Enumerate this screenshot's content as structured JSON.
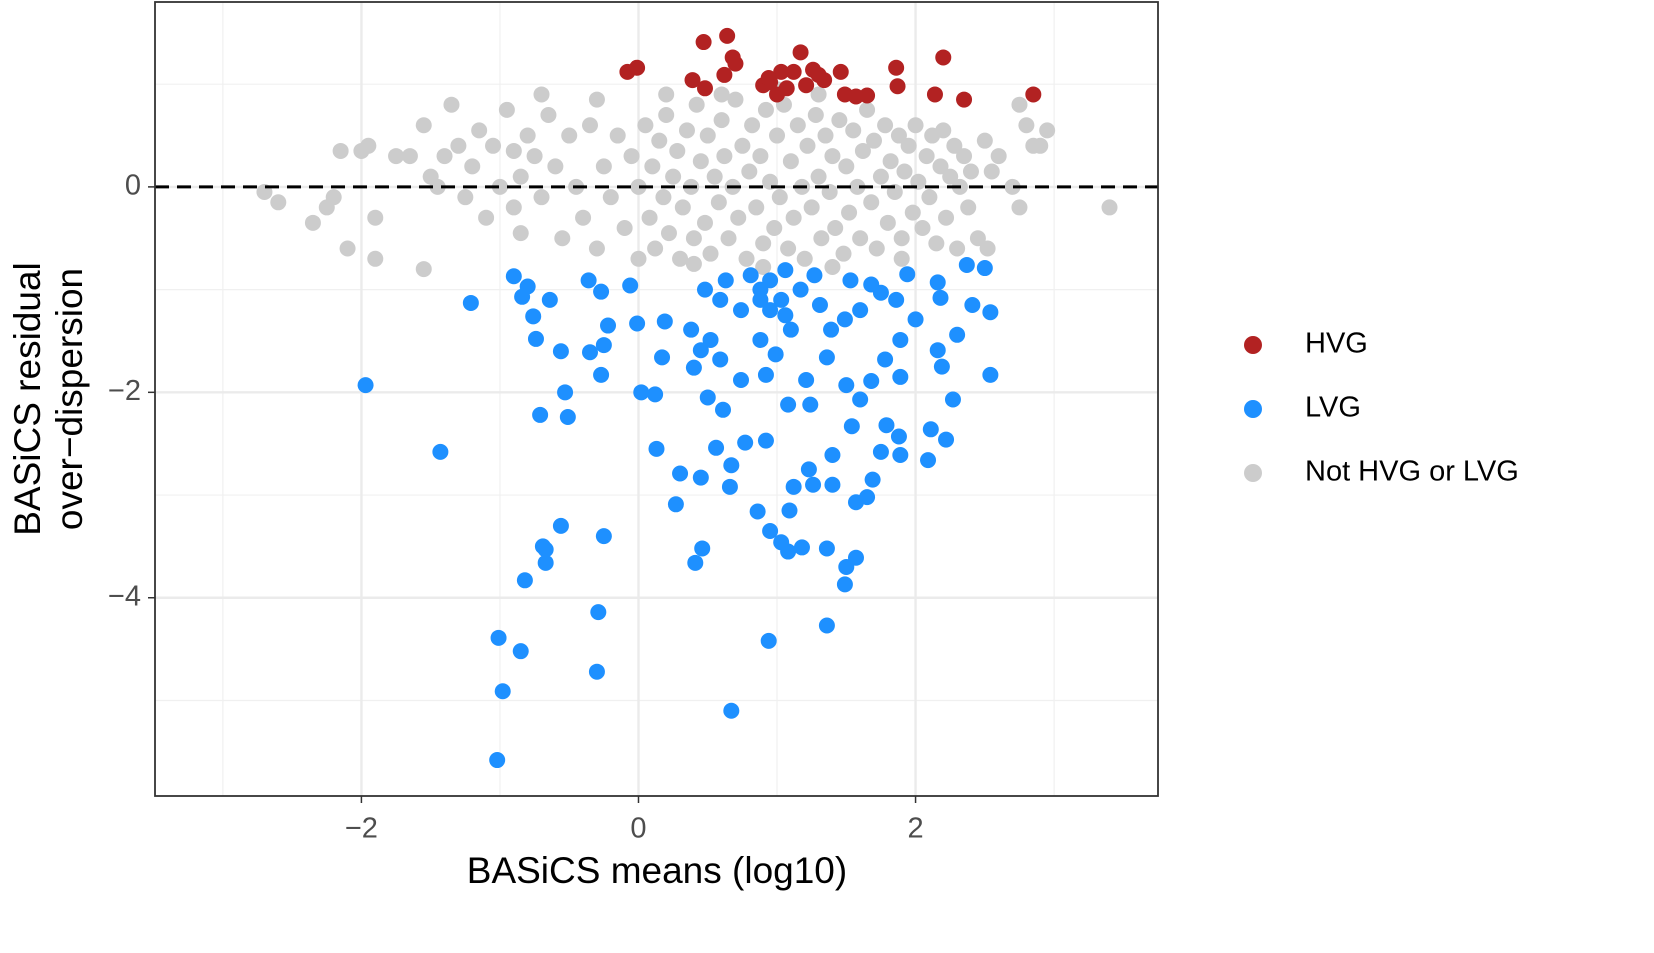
{
  "chart_data": {
    "type": "scatter",
    "xlabel": "BASiCS means (log10)",
    "ylabel": [
      "BASiCS residual",
      "over−dispersion"
    ],
    "xlim": [
      -3.49,
      3.75
    ],
    "ylim": [
      -5.93,
      1.8
    ],
    "xticks": [
      {
        "value": -2,
        "label": "−2"
      },
      0,
      2
    ],
    "yticks": [
      {
        "value": -4,
        "label": "−4"
      },
      {
        "value": -2,
        "label": "−2"
      },
      0
    ],
    "x_minor_grid": [
      -3,
      -1,
      1,
      3
    ],
    "y_minor_grid": [
      -5,
      -3,
      -1,
      1
    ],
    "grid": true,
    "hline": 0,
    "legend": "right",
    "series": [
      {
        "name": "HVG",
        "color": "#b22222",
        "x": [
          -0.08,
          -0.01,
          0.39,
          0.47,
          0.64,
          0.48,
          0.62,
          0.68,
          0.7,
          0.9,
          0.95,
          1.03,
          1.07,
          1.12,
          1.17,
          1.21,
          1.26,
          1.3,
          1.34,
          1.46,
          1.49,
          1.57,
          1.65,
          1.86,
          1.87,
          2.14,
          2.2,
          2.35,
          2.85,
          1.0,
          0.94
        ],
        "y": [
          1.12,
          1.16,
          1.04,
          1.41,
          1.47,
          0.96,
          1.09,
          1.26,
          1.2,
          0.99,
          1.02,
          1.12,
          0.96,
          1.12,
          1.31,
          0.99,
          1.14,
          1.09,
          1.04,
          1.12,
          0.9,
          0.88,
          0.89,
          1.16,
          0.98,
          0.9,
          1.26,
          0.85,
          0.9,
          0.9,
          1.06
        ]
      },
      {
        "name": "LVG",
        "color": "#1e90ff",
        "x": [
          -1.97,
          -1.43,
          -1.21,
          -1.01,
          -0.98,
          -1.02,
          -0.85,
          -0.82,
          -0.69,
          -0.67,
          -0.67,
          -0.56,
          -0.71,
          -0.51,
          -0.53,
          -0.56,
          -0.74,
          -0.76,
          -0.84,
          -0.9,
          -0.8,
          -0.64,
          -0.35,
          -0.27,
          -0.25,
          -0.22,
          -0.36,
          -0.27,
          -0.29,
          -0.3,
          -0.25,
          -0.06,
          -0.01,
          0.02,
          0.12,
          0.13,
          0.19,
          0.17,
          0.3,
          0.27,
          0.41,
          0.46,
          0.45,
          0.4,
          0.5,
          0.56,
          0.61,
          0.67,
          0.66,
          0.67,
          0.77,
          0.86,
          0.92,
          0.94,
          0.95,
          1.03,
          1.08,
          1.09,
          1.12,
          1.08,
          1.18,
          1.26,
          1.23,
          1.36,
          1.36,
          1.4,
          1.4,
          1.36,
          1.5,
          1.49,
          1.57,
          1.54,
          1.57,
          1.65,
          1.68,
          1.69,
          1.75,
          1.79,
          1.88,
          1.89,
          1.89,
          2.09,
          2.11,
          2.22,
          2.27,
          2.16,
          2.19,
          2.54,
          2.54,
          2.5,
          2.37,
          2.41,
          2.3,
          2.16,
          2.18,
          1.94,
          1.75,
          1.68,
          1.6,
          1.49,
          1.31,
          1.17,
          1.03,
          0.88,
          0.74,
          0.59,
          0.48,
          0.38,
          0.52,
          0.88,
          1.1,
          1.39,
          0.95,
          1.06,
          0.81,
          0.63,
          1.27,
          1.53,
          1.86,
          2.0,
          0.74,
          0.92,
          1.21,
          1.5,
          1.6,
          1.24,
          0.59,
          0.45,
          0.99,
          1.78,
          1.89,
          1.06,
          0.95,
          0.88
        ],
        "y": [
          -1.93,
          -2.58,
          -1.13,
          -4.39,
          -4.91,
          -5.58,
          -4.52,
          -3.83,
          -3.5,
          -3.66,
          -3.53,
          -3.3,
          -2.22,
          -2.24,
          -2.0,
          -1.6,
          -1.48,
          -1.26,
          -1.07,
          -0.87,
          -0.97,
          -1.1,
          -1.61,
          -1.83,
          -1.54,
          -1.35,
          -0.91,
          -1.02,
          -4.14,
          -4.72,
          -3.4,
          -0.96,
          -1.33,
          -2.0,
          -2.02,
          -2.55,
          -1.31,
          -1.66,
          -2.79,
          -3.09,
          -3.66,
          -3.52,
          -2.83,
          -1.76,
          -2.05,
          -2.54,
          -2.17,
          -2.71,
          -2.92,
          -5.1,
          -2.49,
          -3.16,
          -2.47,
          -4.42,
          -3.35,
          -3.46,
          -3.55,
          -3.15,
          -2.92,
          -2.12,
          -3.51,
          -2.9,
          -2.75,
          -1.66,
          -4.27,
          -2.61,
          -2.9,
          -3.52,
          -3.7,
          -3.87,
          -3.61,
          -2.33,
          -3.07,
          -3.02,
          -1.89,
          -2.85,
          -2.58,
          -2.32,
          -2.43,
          -2.61,
          -1.85,
          -2.66,
          -2.36,
          -2.46,
          -2.07,
          -1.59,
          -1.75,
          -1.83,
          -1.22,
          -0.79,
          -0.76,
          -1.15,
          -1.44,
          -0.93,
          -1.08,
          -0.85,
          -1.03,
          -0.95,
          -1.2,
          -1.29,
          -1.15,
          -1.0,
          -1.1,
          -1.0,
          -1.2,
          -1.1,
          -1.0,
          -1.39,
          -1.49,
          -1.49,
          -1.39,
          -1.39,
          -0.91,
          -0.81,
          -0.86,
          -0.91,
          -0.86,
          -0.91,
          -1.1,
          -1.29,
          -1.88,
          -1.83,
          -1.88,
          -1.93,
          -2.07,
          -2.12,
          -1.68,
          -1.59,
          -1.63,
          -1.68,
          -1.49,
          -1.25,
          -1.2,
          -1.1
        ]
      },
      {
        "name": "Not HVG or LVG",
        "color": "#cccccc",
        "x": [
          -2.7,
          -2.6,
          -2.35,
          -2.25,
          -2.2,
          -2.15,
          -2.1,
          -2.0,
          -1.95,
          -1.9,
          -1.9,
          -1.75,
          -1.65,
          -1.55,
          -1.55,
          -1.5,
          -1.45,
          -1.4,
          -1.35,
          -1.3,
          -1.25,
          -1.2,
          -1.15,
          -1.1,
          -1.05,
          -1.0,
          -0.95,
          -0.9,
          -0.9,
          -0.85,
          -0.85,
          -0.8,
          -0.75,
          -0.7,
          -0.7,
          -0.65,
          -0.6,
          -0.55,
          -0.5,
          -0.45,
          -0.4,
          -0.35,
          -0.3,
          -0.3,
          -0.25,
          -0.2,
          -0.15,
          -0.1,
          -0.05,
          0.0,
          0.0,
          0.05,
          0.08,
          0.1,
          0.12,
          0.15,
          0.18,
          0.2,
          0.22,
          0.25,
          0.28,
          0.3,
          0.32,
          0.35,
          0.38,
          0.4,
          0.42,
          0.45,
          0.48,
          0.5,
          0.52,
          0.55,
          0.58,
          0.6,
          0.62,
          0.65,
          0.68,
          0.7,
          0.72,
          0.75,
          0.78,
          0.8,
          0.82,
          0.85,
          0.88,
          0.9,
          0.92,
          0.95,
          0.98,
          1.0,
          1.02,
          1.05,
          1.08,
          1.1,
          1.12,
          1.15,
          1.18,
          1.2,
          1.22,
          1.25,
          1.28,
          1.3,
          1.32,
          1.35,
          1.38,
          1.4,
          1.42,
          1.45,
          1.48,
          1.5,
          1.52,
          1.55,
          1.58,
          1.6,
          1.62,
          1.65,
          1.68,
          1.7,
          1.72,
          1.75,
          1.78,
          1.8,
          1.82,
          1.85,
          1.88,
          1.9,
          1.92,
          1.95,
          1.98,
          2.0,
          2.02,
          2.05,
          2.08,
          2.1,
          2.12,
          2.15,
          2.18,
          2.2,
          2.22,
          2.25,
          2.28,
          2.3,
          2.32,
          2.35,
          2.38,
          2.4,
          2.45,
          2.5,
          2.52,
          2.55,
          2.6,
          2.7,
          2.75,
          2.8,
          2.85,
          2.9,
          2.95,
          2.75,
          3.4,
          0.4,
          0.9,
          1.4,
          1.9,
          0.2,
          0.6,
          1.0,
          1.3
        ],
        "y": [
          -0.05,
          -0.15,
          -0.35,
          -0.2,
          -0.1,
          0.35,
          -0.6,
          0.35,
          0.4,
          -0.3,
          -0.7,
          0.3,
          0.3,
          0.6,
          -0.8,
          0.1,
          0.0,
          0.3,
          0.8,
          0.4,
          -0.1,
          0.2,
          0.55,
          -0.3,
          0.4,
          0.0,
          0.75,
          -0.2,
          0.35,
          0.1,
          -0.45,
          0.5,
          0.3,
          0.9,
          -0.1,
          0.7,
          0.2,
          -0.5,
          0.5,
          0.0,
          -0.3,
          0.6,
          0.85,
          -0.6,
          0.2,
          -0.1,
          0.5,
          -0.4,
          0.3,
          -0.7,
          0.0,
          0.6,
          -0.3,
          0.2,
          -0.6,
          0.45,
          -0.1,
          0.7,
          -0.45,
          0.1,
          0.35,
          -0.7,
          -0.2,
          0.55,
          0.0,
          -0.5,
          0.8,
          0.25,
          -0.35,
          0.5,
          -0.65,
          0.1,
          -0.15,
          0.65,
          0.3,
          -0.5,
          0.0,
          0.85,
          -0.3,
          0.4,
          -0.7,
          0.15,
          0.6,
          -0.2,
          0.3,
          -0.55,
          0.75,
          0.05,
          -0.4,
          0.5,
          -0.1,
          0.8,
          -0.6,
          0.25,
          -0.3,
          0.6,
          0.0,
          -0.7,
          0.4,
          -0.2,
          0.7,
          0.1,
          -0.5,
          0.5,
          -0.05,
          0.3,
          -0.4,
          0.65,
          -0.65,
          0.2,
          -0.25,
          0.55,
          0.0,
          -0.5,
          0.35,
          0.75,
          -0.15,
          0.45,
          -0.6,
          0.1,
          0.6,
          -0.35,
          0.25,
          -0.05,
          0.5,
          -0.5,
          0.15,
          0.4,
          -0.25,
          0.6,
          0.05,
          -0.4,
          0.3,
          -0.1,
          0.5,
          -0.55,
          0.2,
          0.55,
          -0.3,
          0.1,
          0.4,
          -0.6,
          0.0,
          0.3,
          -0.2,
          0.15,
          -0.5,
          0.45,
          -0.6,
          0.15,
          0.3,
          0.0,
          0.8,
          0.6,
          0.4,
          0.4,
          0.55,
          -0.2,
          -0.2,
          -0.75,
          -0.78,
          -0.78,
          -0.7,
          0.9,
          0.9,
          0.95,
          0.9
        ]
      }
    ]
  }
}
